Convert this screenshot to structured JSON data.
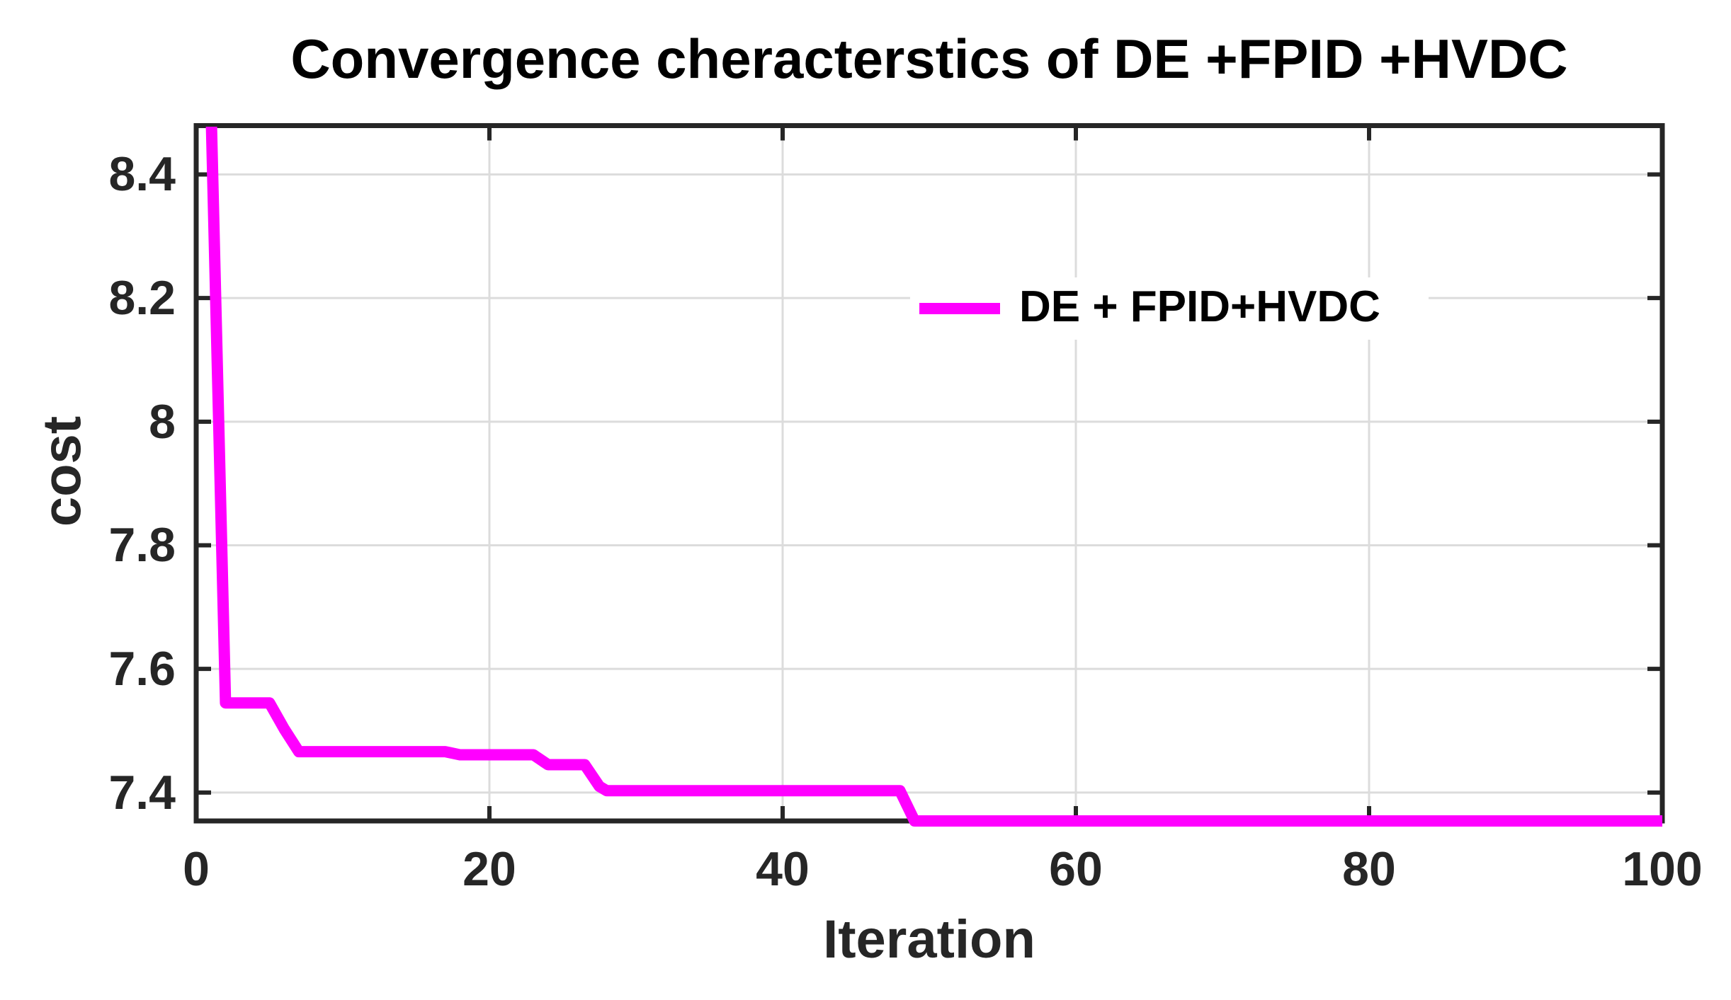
{
  "chart_data": {
    "type": "line",
    "title": "Convergence cheracterstics of DE +FPID +HVDC",
    "xlabel": "Iteration",
    "ylabel": "cost",
    "xlim": [
      0,
      100
    ],
    "ylim": [
      7.354,
      8.479
    ],
    "xticks": [
      0,
      20,
      40,
      60,
      80,
      100
    ],
    "xtick_labels": [
      "0",
      "20",
      "40",
      "60",
      "80",
      "100"
    ],
    "yticks": [
      7.4,
      7.6,
      7.8,
      8.0,
      8.2,
      8.4
    ],
    "ytick_labels": [
      "7.4",
      "7.6",
      "7.8",
      "8",
      "8.2",
      "8.4"
    ],
    "grid": true,
    "colors": {
      "series": "#ff00ff",
      "grid": "#dcdcdc",
      "axis": "#262626",
      "title": "#000000",
      "background": "#ffffff"
    },
    "legend": {
      "position": "upper-right-of-center",
      "entries": [
        {
          "label": "DE + FPID+HVDC",
          "color": "#ff00ff"
        }
      ]
    },
    "series": [
      {
        "name": "DE + FPID+HVDC",
        "color": "#ff00ff",
        "x": [
          1,
          2,
          5,
          6,
          7,
          17,
          18,
          23,
          24,
          26.5,
          27.5,
          28,
          48,
          49,
          100
        ],
        "y": [
          8.52,
          7.545,
          7.545,
          7.503,
          7.466,
          7.466,
          7.461,
          7.461,
          7.445,
          7.445,
          7.41,
          7.403,
          7.403,
          7.354,
          7.354
        ]
      }
    ]
  }
}
